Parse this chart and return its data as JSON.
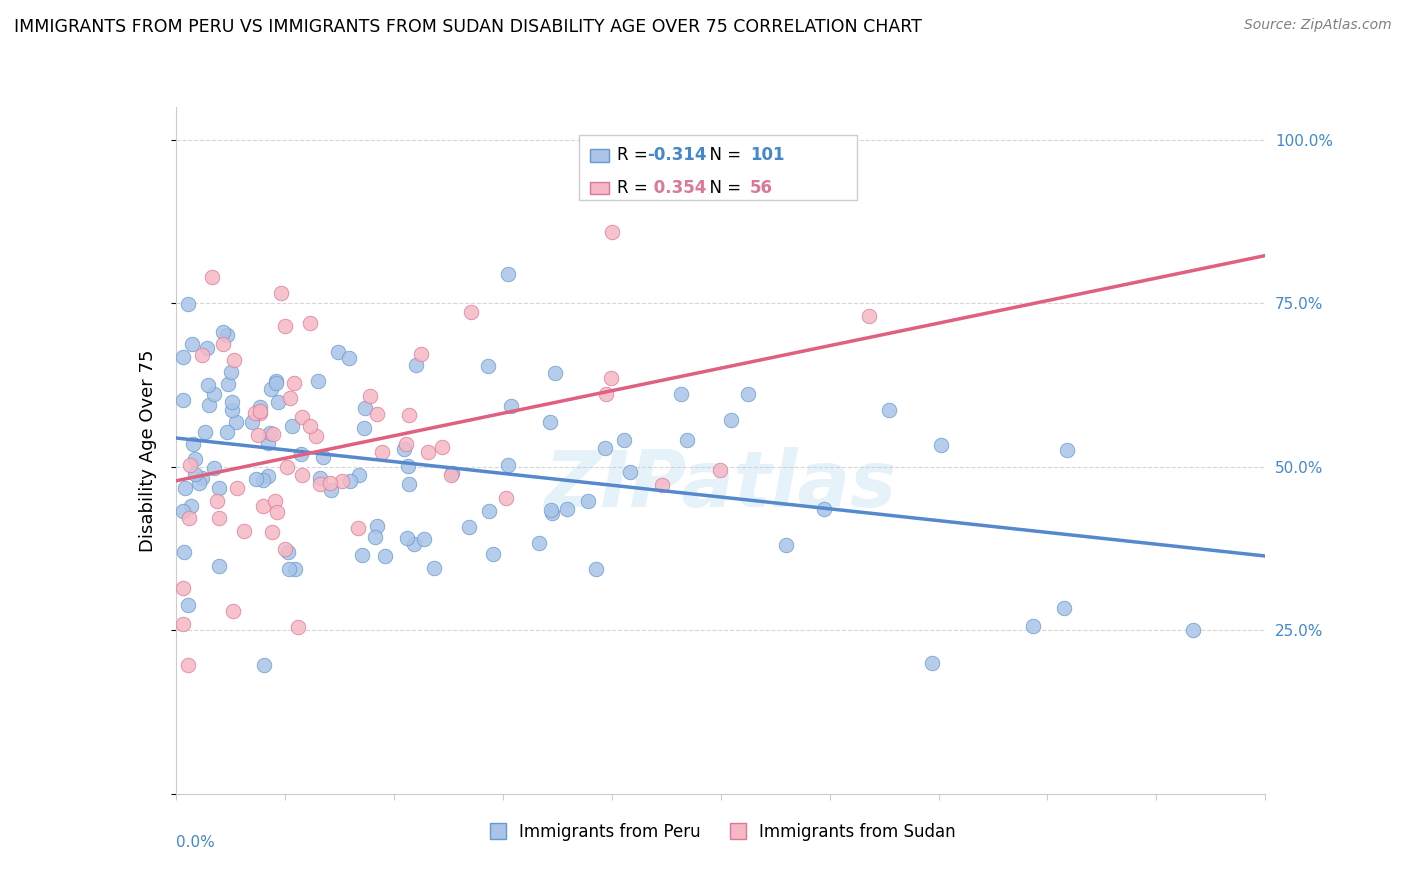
{
  "title": "IMMIGRANTS FROM PERU VS IMMIGRANTS FROM SUDAN DISABILITY AGE OVER 75 CORRELATION CHART",
  "source": "Source: ZipAtlas.com",
  "ylabel": "Disability Age Over 75",
  "xmin": 0.0,
  "xmax": 0.15,
  "ymin": 0.0,
  "ymax": 1.05,
  "yticks": [
    0.0,
    0.25,
    0.5,
    0.75,
    1.0
  ],
  "ytick_labels": [
    "",
    "25.0%",
    "50.0%",
    "75.0%",
    "100.0%"
  ],
  "grid_color": "#cccccc",
  "background_color": "#ffffff",
  "peru_color": "#aac4e8",
  "peru_edge_color": "#6699cc",
  "sudan_color": "#f5b8c4",
  "sudan_edge_color": "#dd7799",
  "peru_line_color": "#5588cc",
  "sudan_line_color": "#e06080",
  "legend_peru_label": "Immigrants from Peru",
  "legend_sudan_label": "Immigrants from Sudan",
  "peru_R": -0.314,
  "peru_N": 101,
  "sudan_R": 0.354,
  "sudan_N": 56,
  "watermark": "ZIPatlas",
  "label_color": "#4488cc"
}
